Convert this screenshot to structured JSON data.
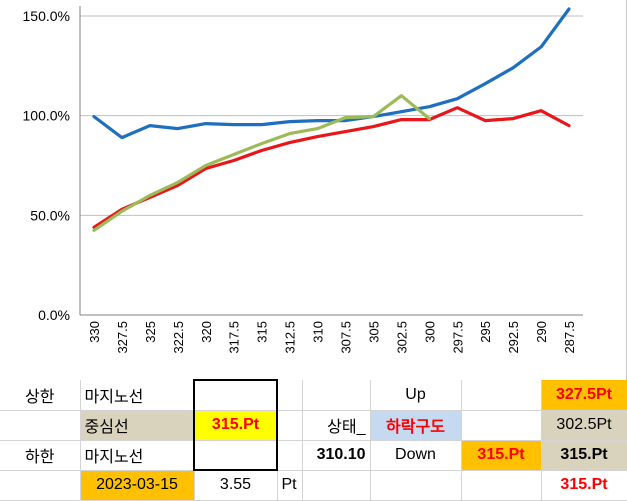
{
  "chart_data": {
    "type": "line",
    "categories": [
      "330",
      "327.5",
      "325",
      "322.5",
      "320",
      "317.5",
      "315",
      "312.5",
      "310",
      "307.5",
      "305",
      "302.5",
      "300",
      "297.5",
      "295",
      "292.5",
      "290",
      "287.5"
    ],
    "series": [
      {
        "color": "#1f6fbf",
        "values": [
          99.5,
          89,
          95,
          93.5,
          96,
          95.5,
          95.5,
          97,
          97.5,
          97.5,
          99.5,
          102,
          104.5,
          108.5,
          116,
          124,
          134.5,
          153.5
        ]
      },
      {
        "color": "#e8161b",
        "values": [
          44,
          53,
          59,
          65,
          73.5,
          77.5,
          82.5,
          86.5,
          89.5,
          92,
          94.5,
          98,
          98,
          104,
          97.5,
          98.5,
          102.5,
          95
        ]
      },
      {
        "color": "#9bbb59",
        "values": [
          42.5,
          52,
          60,
          66.5,
          75,
          80.5,
          86,
          91,
          93.5,
          99,
          99.5,
          110,
          98.5,
          null,
          null,
          null,
          null,
          null
        ]
      }
    ],
    "y_tick_labels": [
      "0.0%",
      "50.0%",
      "100.0%",
      "150.0%"
    ],
    "y_ticks": [
      0,
      50,
      100,
      150
    ],
    "ylim": [
      0,
      155
    ],
    "grid": "horizontal",
    "legend": "none"
  },
  "table": {
    "r1": {
      "a": "상한",
      "b": "마지노선",
      "c": "",
      "d": "",
      "e": "",
      "f": "Up",
      "g": "",
      "h": "327.5Pt"
    },
    "r2": {
      "a": "",
      "b": "중심선",
      "c": "315.Pt",
      "d": "",
      "e": "상태_",
      "f": "하락구도",
      "g": "",
      "h": "302.5Pt"
    },
    "r3": {
      "a": "하한",
      "b": "마지노선",
      "c": "",
      "d": "",
      "e": "310.10",
      "f": "Down",
      "g": "315.Pt",
      "h": "315.Pt"
    },
    "r4": {
      "a": "",
      "b": "2023-03-15",
      "c": "3.55",
      "d": "Pt",
      "e": "",
      "f": "",
      "g": "",
      "h": "315.Pt"
    }
  }
}
